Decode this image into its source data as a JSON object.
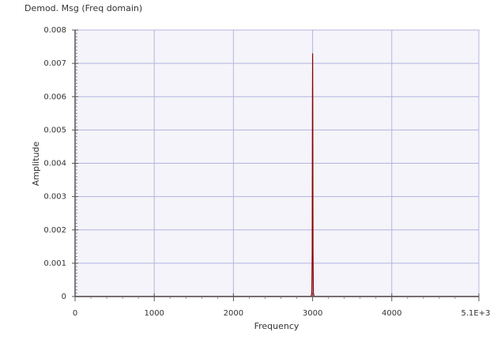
{
  "panel": {
    "title": "Demod. Msg (Freq domain)"
  },
  "chart_data": {
    "type": "line",
    "title": "Demod. Msg (Freq domain)",
    "xlabel": "Frequency",
    "ylabel": "Amplitude",
    "xlim": [
      0,
      5100
    ],
    "ylim": [
      0,
      0.008
    ],
    "x_ticks": [
      0,
      1000,
      2000,
      3000,
      4000,
      5100
    ],
    "x_tick_labels": [
      "0",
      "1000",
      "2000",
      "3000",
      "4000",
      "5.1E+3"
    ],
    "y_ticks": [
      0,
      0.001,
      0.002,
      0.003,
      0.004,
      0.005,
      0.006,
      0.007,
      0.008
    ],
    "y_tick_labels": [
      "0",
      "0.001",
      "0.002",
      "0.003",
      "0.004",
      "0.005",
      "0.006",
      "0.007",
      "0.008"
    ],
    "grid": true,
    "series": [
      {
        "color": "#8b0000",
        "x": [
          0,
          2980,
          2990,
          2995,
          2998,
          3000,
          3002,
          3005,
          3010,
          3020,
          5100
        ],
        "y": [
          0,
          0,
          0.0001,
          0.0013,
          0.0058,
          0.0073,
          0.0058,
          0.0013,
          0.0001,
          0,
          0
        ]
      }
    ]
  }
}
